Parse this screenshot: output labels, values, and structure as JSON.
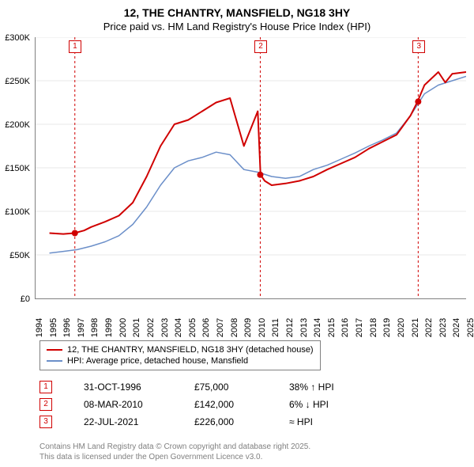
{
  "title": "12, THE CHANTRY, MANSFIELD, NG18 3HY",
  "subtitle": "Price paid vs. HM Land Registry's House Price Index (HPI)",
  "chart": {
    "type": "line",
    "background_color": "#ffffff",
    "grid_color": "#d0d0d0",
    "axis_color": "#808080",
    "ylim": [
      0,
      300000
    ],
    "ytick_step": 50000,
    "y_labels": [
      "£0",
      "£50K",
      "£100K",
      "£150K",
      "£200K",
      "£250K",
      "£300K"
    ],
    "x_years": [
      1994,
      1995,
      1996,
      1997,
      1998,
      1999,
      2000,
      2001,
      2002,
      2003,
      2004,
      2005,
      2006,
      2007,
      2008,
      2009,
      2010,
      2011,
      2012,
      2013,
      2014,
      2015,
      2016,
      2017,
      2018,
      2019,
      2020,
      2021,
      2022,
      2023,
      2024,
      2025
    ],
    "series": [
      {
        "name": "12, THE CHANTRY, MANSFIELD, NG18 3HY (detached house)",
        "color": "#d00000",
        "width": 2,
        "points": [
          [
            1995,
            75000
          ],
          [
            1996,
            74000
          ],
          [
            1996.8,
            75000
          ],
          [
            1997.5,
            78000
          ],
          [
            1998,
            82000
          ],
          [
            1999,
            88000
          ],
          [
            2000,
            95000
          ],
          [
            2001,
            110000
          ],
          [
            2002,
            140000
          ],
          [
            2003,
            175000
          ],
          [
            2004,
            200000
          ],
          [
            2005,
            205000
          ],
          [
            2006,
            215000
          ],
          [
            2007,
            225000
          ],
          [
            2008,
            230000
          ],
          [
            2009,
            175000
          ],
          [
            2009.5,
            195000
          ],
          [
            2010,
            215000
          ],
          [
            2010.2,
            142000
          ],
          [
            2010.5,
            135000
          ],
          [
            2011,
            130000
          ],
          [
            2012,
            132000
          ],
          [
            2013,
            135000
          ],
          [
            2014,
            140000
          ],
          [
            2015,
            148000
          ],
          [
            2016,
            155000
          ],
          [
            2017,
            162000
          ],
          [
            2018,
            172000
          ],
          [
            2019,
            180000
          ],
          [
            2020,
            188000
          ],
          [
            2021,
            210000
          ],
          [
            2021.5,
            226000
          ],
          [
            2022,
            245000
          ],
          [
            2023,
            260000
          ],
          [
            2023.5,
            248000
          ],
          [
            2024,
            258000
          ],
          [
            2025,
            260000
          ]
        ]
      },
      {
        "name": "HPI: Average price, detached house, Mansfield",
        "color": "#6b8fc9",
        "width": 1.5,
        "points": [
          [
            1995,
            52000
          ],
          [
            1996,
            54000
          ],
          [
            1997,
            56000
          ],
          [
            1998,
            60000
          ],
          [
            1999,
            65000
          ],
          [
            2000,
            72000
          ],
          [
            2001,
            85000
          ],
          [
            2002,
            105000
          ],
          [
            2003,
            130000
          ],
          [
            2004,
            150000
          ],
          [
            2005,
            158000
          ],
          [
            2006,
            162000
          ],
          [
            2007,
            168000
          ],
          [
            2008,
            165000
          ],
          [
            2009,
            148000
          ],
          [
            2010,
            145000
          ],
          [
            2011,
            140000
          ],
          [
            2012,
            138000
          ],
          [
            2013,
            140000
          ],
          [
            2014,
            148000
          ],
          [
            2015,
            153000
          ],
          [
            2016,
            160000
          ],
          [
            2017,
            167000
          ],
          [
            2018,
            175000
          ],
          [
            2019,
            182000
          ],
          [
            2020,
            190000
          ],
          [
            2021,
            210000
          ],
          [
            2022,
            235000
          ],
          [
            2023,
            245000
          ],
          [
            2024,
            250000
          ],
          [
            2025,
            255000
          ]
        ]
      }
    ],
    "event_lines": [
      {
        "year": 1996.83,
        "label": "1"
      },
      {
        "year": 2010.18,
        "label": "2"
      },
      {
        "year": 2021.55,
        "label": "3"
      }
    ],
    "event_dots": [
      {
        "year": 1996.83,
        "value": 75000
      },
      {
        "year": 2010.18,
        "value": 142000
      },
      {
        "year": 2021.55,
        "value": 226000
      }
    ],
    "event_line_color": "#d00000",
    "event_dot_color": "#d00000"
  },
  "legend": {
    "items": [
      {
        "color": "#d00000",
        "label": "12, THE CHANTRY, MANSFIELD, NG18 3HY (detached house)"
      },
      {
        "color": "#6b8fc9",
        "label": "HPI: Average price, detached house, Mansfield"
      }
    ]
  },
  "annotations": [
    {
      "num": "1",
      "date": "31-OCT-1996",
      "price": "£75,000",
      "pct": "38% ↑ HPI"
    },
    {
      "num": "2",
      "date": "08-MAR-2010",
      "price": "£142,000",
      "pct": "6% ↓ HPI"
    },
    {
      "num": "3",
      "date": "22-JUL-2021",
      "price": "£226,000",
      "pct": "≈ HPI"
    }
  ],
  "footer": {
    "line1": "Contains HM Land Registry data © Crown copyright and database right 2025.",
    "line2": "This data is licensed under the Open Government Licence v3.0."
  }
}
